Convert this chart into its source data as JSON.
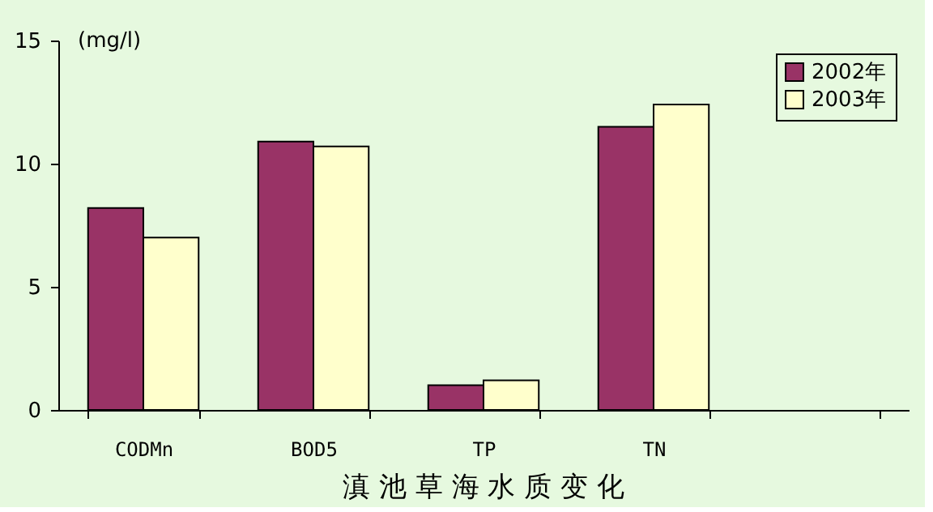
{
  "chart_data": {
    "type": "bar",
    "title": "滇 池 草 海 水 质 变 化",
    "categories": [
      "CODMn",
      "BOD5",
      "TP",
      "TN",
      null
    ],
    "series": [
      {
        "name": "2002年",
        "color": "#993366",
        "values": [
          8.2,
          10.9,
          1.0,
          11.5,
          null
        ]
      },
      {
        "name": "2003年",
        "color": "#ffffcc",
        "values": [
          7.0,
          10.7,
          1.2,
          12.4,
          null
        ]
      }
    ],
    "ylim": [
      0,
      15
    ],
    "yticks": [
      0,
      5,
      10,
      15
    ],
    "grid": false,
    "legend": "top right",
    "annotations": [
      "(mg/l)"
    ]
  }
}
